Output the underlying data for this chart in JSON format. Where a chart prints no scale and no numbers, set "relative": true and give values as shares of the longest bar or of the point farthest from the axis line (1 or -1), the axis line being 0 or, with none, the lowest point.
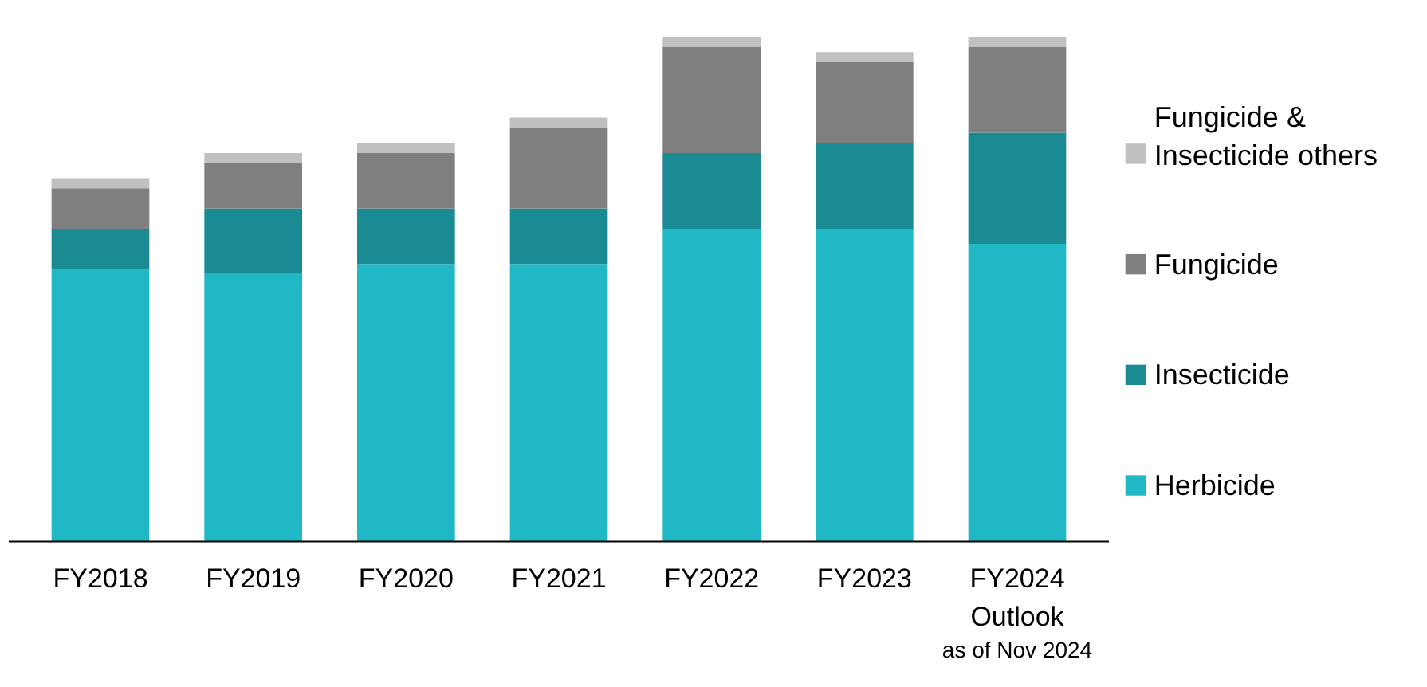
{
  "chart_data": {
    "type": "bar",
    "stacked": true,
    "relative": true,
    "legend": "right",
    "grid": false,
    "categories": [
      "FY2018",
      "FY2019",
      "FY2020",
      "FY2021",
      "FY2022",
      "FY2023",
      "FY2024\nOutlook"
    ],
    "annotations": [
      "as of Nov 2024"
    ],
    "series": [
      {
        "name": "Herbicide",
        "color": "#21b8c6",
        "values": [
          0.54,
          0.53,
          0.55,
          0.55,
          0.62,
          0.62,
          0.59
        ]
      },
      {
        "name": "Insecticide",
        "color": "#1a8a93",
        "values": [
          0.08,
          0.13,
          0.11,
          0.11,
          0.15,
          0.17,
          0.22
        ]
      },
      {
        "name": "Fungicide",
        "color": "#7f7f7f",
        "values": [
          0.08,
          0.09,
          0.11,
          0.16,
          0.21,
          0.16,
          0.17
        ]
      },
      {
        "name": "Fungicide & Insecticide others",
        "color": "#c0c0c0",
        "values": [
          0.02,
          0.02,
          0.02,
          0.02,
          0.02,
          0.02,
          0.02
        ]
      }
    ]
  }
}
